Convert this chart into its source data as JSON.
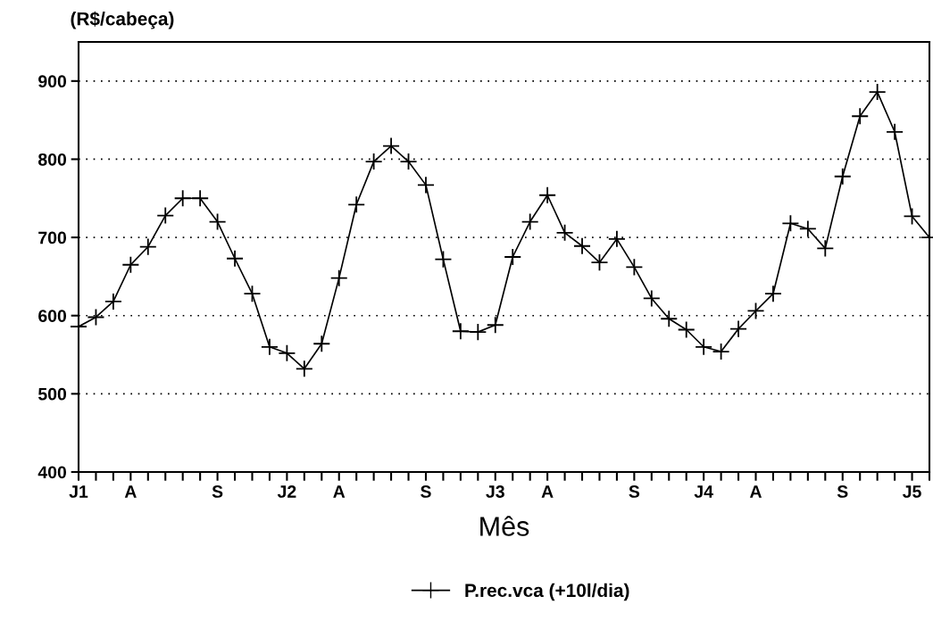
{
  "chart_data": {
    "type": "line",
    "ylabel": "(R$/cabeça)",
    "xlabel": "Mês",
    "categories": [
      "J1",
      null,
      null,
      "A",
      null,
      null,
      null,
      null,
      "S",
      null,
      null,
      null,
      "J2",
      null,
      null,
      "A",
      null,
      null,
      null,
      null,
      "S",
      null,
      null,
      null,
      "J3",
      null,
      null,
      "A",
      null,
      null,
      null,
      null,
      "S",
      null,
      null,
      null,
      "J4",
      null,
      null,
      "A",
      null,
      null,
      null,
      null,
      "S",
      null,
      null,
      null,
      "J5",
      null
    ],
    "series": [
      {
        "name": "P.rec.vca (+10l/dia)",
        "color": "#000000",
        "values": [
          586,
          598,
          618,
          665,
          688,
          728,
          750,
          750,
          720,
          673,
          628,
          560,
          552,
          532,
          564,
          648,
          742,
          797,
          817,
          797,
          767,
          672,
          580,
          579,
          588,
          675,
          720,
          754,
          706,
          689,
          668,
          698,
          662,
          622,
          596,
          582,
          560,
          554,
          583,
          606,
          628,
          718,
          711,
          686,
          778,
          855,
          886,
          835,
          727,
          700
        ]
      }
    ],
    "ylim": [
      400,
      950
    ],
    "yticks": [
      400,
      500,
      600,
      700,
      800,
      900
    ],
    "grid": "y",
    "legend": "bottom",
    "marker": "cross",
    "line_style": "solid"
  }
}
